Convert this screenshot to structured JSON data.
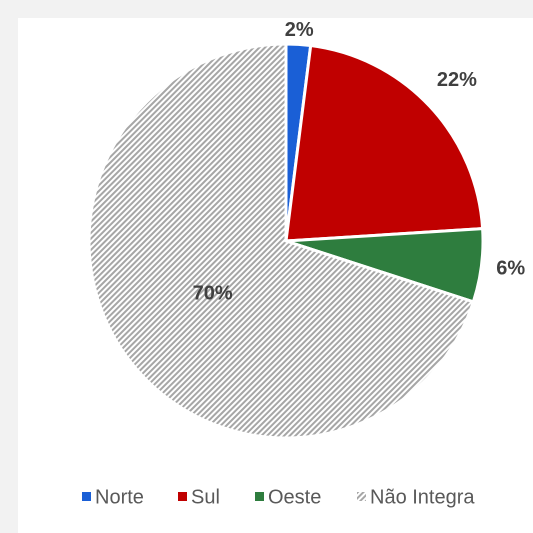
{
  "chart_data": {
    "type": "pie",
    "categories": [
      "Norte",
      "Sul",
      "Oeste",
      "Não Integra"
    ],
    "values": [
      2,
      22,
      6,
      70
    ],
    "value_labels": [
      "2%",
      "22%",
      "6%",
      "70%"
    ],
    "colors": [
      "#1a5fd6",
      "#c00000",
      "#2e7d3e",
      "#a6a6a6"
    ],
    "hatched": [
      false,
      false,
      false,
      true
    ],
    "legend": "bottom"
  }
}
